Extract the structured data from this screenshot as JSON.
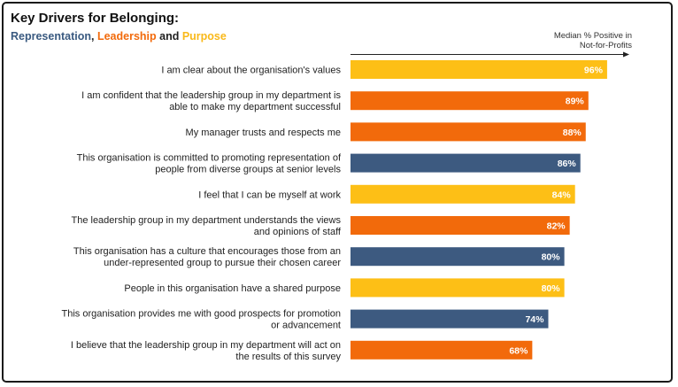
{
  "header": {
    "title": "Key Drivers for Belonging:",
    "subtitle_part1": "Representation",
    "subtitle_sep": ", ",
    "subtitle_part2": "Leadership",
    "subtitle_and": " and ",
    "subtitle_part3": "Purpose",
    "axis_caption_line1": "Median % Positive in",
    "axis_caption_line2": "Not-for-Profits"
  },
  "colors": {
    "Representation": "#3d5a80",
    "Leadership": "#f26a0b",
    "Purpose": "#fdbf16"
  },
  "chart_data": {
    "type": "bar",
    "orientation": "horizontal",
    "title": "Key Drivers for Belonging:",
    "subtitle": "Representation, Leadership and Purpose",
    "xlabel": "Median % Positive in Not-for-Profits",
    "xlim": [
      0,
      100
    ],
    "grid": false,
    "categories": [
      [
        "I am clear about the organisation's values"
      ],
      [
        "I am confident that the leadership group in my department is",
        "able to make my department successful"
      ],
      [
        "My manager trusts and respects me"
      ],
      [
        "This organisation is committed to promoting representation of",
        "people from diverse groups at senior levels"
      ],
      [
        "I feel that I can be myself at work"
      ],
      [
        "The leadership group in my department understands the views",
        "and opinions of staff"
      ],
      [
        "This organisation has a culture that encourages those from an",
        "under-represented group to pursue their chosen career"
      ],
      [
        "People in this organisation have a shared purpose"
      ],
      [
        "This organisation provides me with good prospects for promotion",
        "or advancement"
      ],
      [
        "I believe that the leadership group in my department will act on",
        "the results of this survey"
      ]
    ],
    "values": [
      96,
      89,
      88,
      86,
      84,
      82,
      80,
      80,
      74,
      68
    ],
    "value_labels": [
      "96%",
      "89%",
      "88%",
      "86%",
      "84%",
      "82%",
      "80%",
      "80%",
      "74%",
      "68%"
    ],
    "groups": [
      "Purpose",
      "Leadership",
      "Leadership",
      "Representation",
      "Purpose",
      "Leadership",
      "Representation",
      "Purpose",
      "Representation",
      "Leadership"
    ]
  }
}
